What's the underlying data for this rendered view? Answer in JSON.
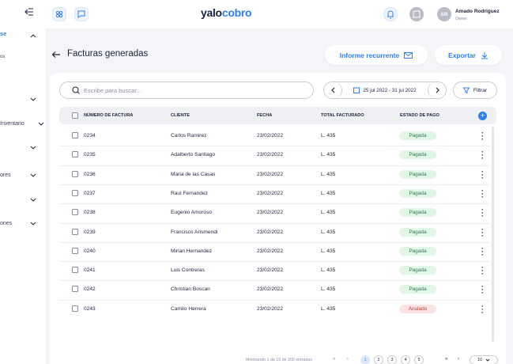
{
  "sidebar": {
    "items": [
      "se",
      "os",
      "Inventario",
      "ores",
      "ones"
    ]
  },
  "header": {
    "logo_part1": "yalo",
    "logo_part2": "cobro",
    "user_initials": "AR",
    "user_name": "Amado Rodriguez",
    "user_role": "Owner"
  },
  "page": {
    "title": "Facturas generadas",
    "buttons": [
      "Informe recurrente",
      "Exportar"
    ]
  },
  "toolbar": {
    "search_placeholder": "Escribe para buscar...",
    "date_range": "25 jul 2022 - 31 jul 2022",
    "filter": "Filtrar"
  },
  "table": {
    "columns": [
      "NÚMERO DE FACTURA",
      "CLIENTE",
      "FECHA",
      "TOTAL FACTURADO",
      "ESTADO DE PAGO"
    ],
    "rows": [
      {
        "number": "0234",
        "client": "Carlos Ramirez",
        "date": "23/02/2022",
        "total": "L. 435",
        "status": "Pagada",
        "status_color": "#2e7d45",
        "status_background": "#e1f6e6"
      },
      {
        "number": "0235",
        "client": "Adalberto Santiago",
        "date": "23/02/2022",
        "total": "L. 435",
        "status": "Pagada",
        "status_color": "#2e7d45",
        "status_background": "#e1f6e6"
      },
      {
        "number": "0236",
        "client": "Maria de las Casas",
        "date": "23/02/2022",
        "total": "L. 435",
        "status": "Pagada",
        "status_color": "#2e7d45",
        "status_background": "#e1f6e6"
      },
      {
        "number": "0237",
        "client": "Raul Fernandez",
        "date": "23/02/2022",
        "total": "L. 435",
        "status": "Pagada",
        "status_color": "#2e7d45",
        "status_background": "#e1f6e6"
      },
      {
        "number": "0238",
        "client": "Eugenio Amoroso",
        "date": "23/02/2022",
        "total": "L. 435",
        "status": "Pagada",
        "status_color": "#2e7d45",
        "status_background": "#e1f6e6"
      },
      {
        "number": "0239",
        "client": "Francisco Arismendi",
        "date": "23/02/2022",
        "total": "L. 435",
        "status": "Pagada",
        "status_color": "#2e7d45",
        "status_background": "#e1f6e6"
      },
      {
        "number": "0240",
        "client": "Mirian Hernandez",
        "date": "23/02/2022",
        "total": "L. 435",
        "status": "Pagada",
        "status_color": "#2e7d45",
        "status_background": "#e1f6e6"
      },
      {
        "number": "0241",
        "client": "Luis Contreras",
        "date": "23/02/2022",
        "total": "L. 435",
        "status": "Pagada",
        "status_color": "#2e7d45",
        "status_background": "#e1f6e6"
      },
      {
        "number": "0242",
        "client": "Christian Boscan",
        "date": "23/02/2022",
        "total": "L. 435",
        "status": "Pagada",
        "status_color": "#2e7d45",
        "status_background": "#e1f6e6"
      },
      {
        "number": "0243",
        "client": "Camilo Herrera",
        "date": "23/02/2022",
        "total": "L. 435",
        "status": "Anulado",
        "status_color": "#c0392b",
        "status_background": "#fde3e3"
      }
    ]
  },
  "footer": {
    "summary": "Mostrando 1 de 10 de 200 entradas",
    "pages": [
      "1",
      "2",
      "3",
      "4",
      "5"
    ],
    "per_page": "10"
  }
}
